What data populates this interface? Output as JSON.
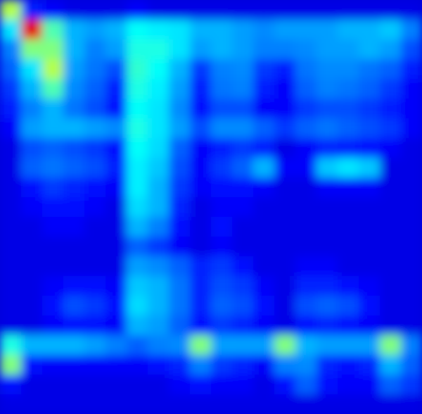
{
  "chart_data": {
    "type": "heatmap",
    "color": "jet",
    "tick_labels": false,
    "zlim": [
      0,
      1
    ],
    "cells": [
      [
        0.55,
        0.15,
        0.12,
        0.1,
        0.1,
        0.1,
        0.12,
        0.1,
        0.1,
        0.1,
        0.1,
        0.1,
        0.1,
        0.1,
        0.1,
        0.1,
        0.1,
        0.1,
        0.1,
        0.1
      ],
      [
        0.35,
        0.9,
        0.45,
        0.3,
        0.28,
        0.3,
        0.38,
        0.36,
        0.35,
        0.3,
        0.3,
        0.28,
        0.26,
        0.28,
        0.28,
        0.28,
        0.3,
        0.3,
        0.32,
        0.25
      ],
      [
        0.25,
        0.5,
        0.5,
        0.3,
        0.25,
        0.28,
        0.4,
        0.4,
        0.35,
        0.28,
        0.3,
        0.28,
        0.25,
        0.25,
        0.26,
        0.28,
        0.28,
        0.3,
        0.28,
        0.2
      ],
      [
        0.22,
        0.35,
        0.55,
        0.28,
        0.24,
        0.2,
        0.42,
        0.38,
        0.3,
        0.18,
        0.25,
        0.26,
        0.18,
        0.15,
        0.24,
        0.26,
        0.26,
        0.24,
        0.22,
        0.15
      ],
      [
        0.18,
        0.3,
        0.45,
        0.26,
        0.22,
        0.15,
        0.4,
        0.36,
        0.28,
        0.15,
        0.24,
        0.25,
        0.15,
        0.12,
        0.22,
        0.25,
        0.24,
        0.22,
        0.18,
        0.12
      ],
      [
        0.15,
        0.25,
        0.3,
        0.24,
        0.2,
        0.14,
        0.38,
        0.35,
        0.26,
        0.14,
        0.2,
        0.2,
        0.12,
        0.12,
        0.18,
        0.2,
        0.2,
        0.18,
        0.15,
        0.12
      ],
      [
        0.12,
        0.28,
        0.3,
        0.3,
        0.28,
        0.26,
        0.4,
        0.35,
        0.28,
        0.2,
        0.26,
        0.26,
        0.22,
        0.18,
        0.22,
        0.24,
        0.22,
        0.2,
        0.18,
        0.12
      ],
      [
        0.1,
        0.2,
        0.22,
        0.2,
        0.18,
        0.14,
        0.38,
        0.34,
        0.22,
        0.12,
        0.15,
        0.18,
        0.15,
        0.1,
        0.12,
        0.16,
        0.15,
        0.14,
        0.12,
        0.1
      ],
      [
        0.1,
        0.22,
        0.24,
        0.22,
        0.2,
        0.15,
        0.36,
        0.32,
        0.2,
        0.12,
        0.18,
        0.22,
        0.3,
        0.12,
        0.12,
        0.32,
        0.35,
        0.32,
        0.1,
        0.1
      ],
      [
        0.1,
        0.14,
        0.18,
        0.16,
        0.14,
        0.12,
        0.36,
        0.3,
        0.18,
        0.12,
        0.14,
        0.14,
        0.12,
        0.1,
        0.1,
        0.12,
        0.12,
        0.12,
        0.1,
        0.1
      ],
      [
        0.1,
        0.12,
        0.14,
        0.14,
        0.12,
        0.1,
        0.34,
        0.3,
        0.16,
        0.1,
        0.12,
        0.12,
        0.1,
        0.1,
        0.1,
        0.1,
        0.1,
        0.1,
        0.1,
        0.1
      ],
      [
        0.1,
        0.1,
        0.12,
        0.12,
        0.1,
        0.1,
        0.3,
        0.25,
        0.14,
        0.1,
        0.14,
        0.1,
        0.1,
        0.1,
        0.1,
        0.1,
        0.1,
        0.1,
        0.1,
        0.1
      ],
      [
        0.1,
        0.1,
        0.1,
        0.1,
        0.1,
        0.1,
        0.22,
        0.18,
        0.12,
        0.1,
        0.12,
        0.1,
        0.1,
        0.1,
        0.1,
        0.1,
        0.1,
        0.1,
        0.1,
        0.1
      ],
      [
        0.1,
        0.1,
        0.1,
        0.1,
        0.1,
        0.1,
        0.28,
        0.26,
        0.22,
        0.16,
        0.18,
        0.14,
        0.1,
        0.1,
        0.12,
        0.12,
        0.1,
        0.1,
        0.1,
        0.1
      ],
      [
        0.1,
        0.1,
        0.12,
        0.14,
        0.14,
        0.12,
        0.32,
        0.3,
        0.24,
        0.16,
        0.2,
        0.18,
        0.12,
        0.1,
        0.16,
        0.16,
        0.14,
        0.12,
        0.1,
        0.1
      ],
      [
        0.1,
        0.1,
        0.14,
        0.2,
        0.18,
        0.14,
        0.34,
        0.3,
        0.24,
        0.16,
        0.22,
        0.2,
        0.14,
        0.1,
        0.2,
        0.22,
        0.2,
        0.14,
        0.1,
        0.1
      ],
      [
        0.1,
        0.1,
        0.12,
        0.14,
        0.14,
        0.12,
        0.3,
        0.28,
        0.22,
        0.14,
        0.18,
        0.16,
        0.12,
        0.1,
        0.14,
        0.16,
        0.14,
        0.12,
        0.1,
        0.1
      ],
      [
        0.4,
        0.3,
        0.3,
        0.3,
        0.28,
        0.25,
        0.22,
        0.25,
        0.26,
        0.5,
        0.28,
        0.28,
        0.28,
        0.5,
        0.3,
        0.28,
        0.28,
        0.28,
        0.5,
        0.25
      ],
      [
        0.5,
        0.14,
        0.12,
        0.12,
        0.12,
        0.12,
        0.12,
        0.14,
        0.16,
        0.25,
        0.18,
        0.16,
        0.12,
        0.25,
        0.26,
        0.16,
        0.14,
        0.16,
        0.3,
        0.22
      ],
      [
        0.14,
        0.1,
        0.1,
        0.1,
        0.1,
        0.1,
        0.1,
        0.1,
        0.12,
        0.14,
        0.12,
        0.12,
        0.1,
        0.14,
        0.22,
        0.14,
        0.12,
        0.12,
        0.22,
        0.18
      ],
      [
        0.1,
        0.1,
        0.1,
        0.1,
        0.1,
        0.1,
        0.1,
        0.1,
        0.1,
        0.1,
        0.1,
        0.1,
        0.1,
        0.1,
        0.1,
        0.1,
        0.1,
        0.1,
        0.1,
        0.1
      ]
    ]
  }
}
